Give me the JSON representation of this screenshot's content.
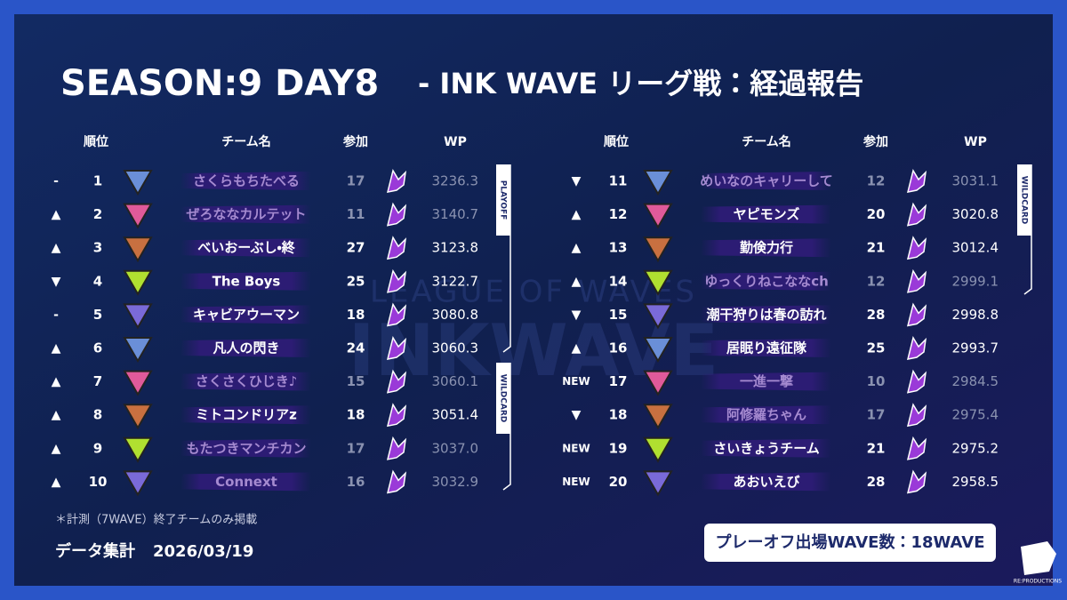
{
  "header": {
    "title": "SEASON:9 DAY8",
    "subtitle": "- INK WAVE リーグ戦：経過報告"
  },
  "columns": [
    "順位",
    "チーム名",
    "参加",
    "WP"
  ],
  "tables": [
    {
      "side_label": "PLAYOFF",
      "side_label_2": "WILDCARD",
      "rows": [
        {
          "change": "-",
          "rank": "1",
          "team": "さくらもちたべる",
          "participation": "17",
          "wp": "3236.3",
          "qualified": false
        },
        {
          "change": "▲",
          "rank": "2",
          "team": "ぜろななカルテット",
          "participation": "11",
          "wp": "3140.7",
          "qualified": false
        },
        {
          "change": "▲",
          "rank": "3",
          "team": "べいおーぶし・終",
          "participation": "27",
          "wp": "3123.8",
          "qualified": true
        },
        {
          "change": "▼",
          "rank": "4",
          "team": "The Boys",
          "participation": "25",
          "wp": "3122.7",
          "qualified": true
        },
        {
          "change": "-",
          "rank": "5",
          "team": "キャビアウーマン",
          "participation": "18",
          "wp": "3080.8",
          "qualified": true
        },
        {
          "change": "▲",
          "rank": "6",
          "team": "凡人の閃き",
          "participation": "24",
          "wp": "3060.3",
          "qualified": true
        },
        {
          "change": "▲",
          "rank": "7",
          "team": "さくさくひじき♪",
          "participation": "15",
          "wp": "3060.1",
          "qualified": false
        },
        {
          "change": "▲",
          "rank": "8",
          "team": "ミトコンドリアz",
          "participation": "18",
          "wp": "3051.4",
          "qualified": true
        },
        {
          "change": "▲",
          "rank": "9",
          "team": "もたつきマンチカン",
          "participation": "17",
          "wp": "3037.0",
          "qualified": false
        },
        {
          "change": "▲",
          "rank": "10",
          "team": "Connext",
          "participation": "16",
          "wp": "3032.9",
          "qualified": false
        }
      ]
    },
    {
      "side_label": "WILDCARD",
      "rows": [
        {
          "change": "▼",
          "rank": "11",
          "team": "めいなのキャリーして",
          "participation": "12",
          "wp": "3031.1",
          "qualified": false
        },
        {
          "change": "▲",
          "rank": "12",
          "team": "ヤピモンズ",
          "participation": "20",
          "wp": "3020.8",
          "qualified": true
        },
        {
          "change": "▲",
          "rank": "13",
          "team": "勤倹力行",
          "participation": "21",
          "wp": "3012.4",
          "qualified": true
        },
        {
          "change": "▲",
          "rank": "14",
          "team": "ゆっくりねこななch",
          "participation": "12",
          "wp": "2999.1",
          "qualified": false
        },
        {
          "change": "▼",
          "rank": "15",
          "team": "潮干狩りは春の訪れ",
          "participation": "28",
          "wp": "2998.8",
          "qualified": true
        },
        {
          "change": "▲",
          "rank": "16",
          "team": "居眠り遠征隊",
          "participation": "25",
          "wp": "2993.7",
          "qualified": true
        },
        {
          "change": "NEW",
          "rank": "17",
          "team": "一進一撃",
          "participation": "10",
          "wp": "2984.5",
          "qualified": false
        },
        {
          "change": "▼",
          "rank": "18",
          "team": "阿修羅ちゃん",
          "participation": "17",
          "wp": "2975.4",
          "qualified": false
        },
        {
          "change": "NEW",
          "rank": "19",
          "team": "さいきょうチーム",
          "participation": "21",
          "wp": "2975.2",
          "qualified": true
        },
        {
          "change": "NEW",
          "rank": "20",
          "team": "あおいえび",
          "participation": "28",
          "wp": "2958.5",
          "qualified": true
        }
      ]
    }
  ],
  "watermark": {
    "line1": "LEAGUE OF WAVES",
    "line2": "INKWAVE"
  },
  "footer": {
    "note": "＊計測（7WAVE）終了チームのみ掲載",
    "date_label": "データ集計",
    "date": "2026/03/19",
    "playoff_box": "プレーオフ出場WAVE数：18WAVE",
    "brand": "RE:PRODUCTIONS"
  }
}
